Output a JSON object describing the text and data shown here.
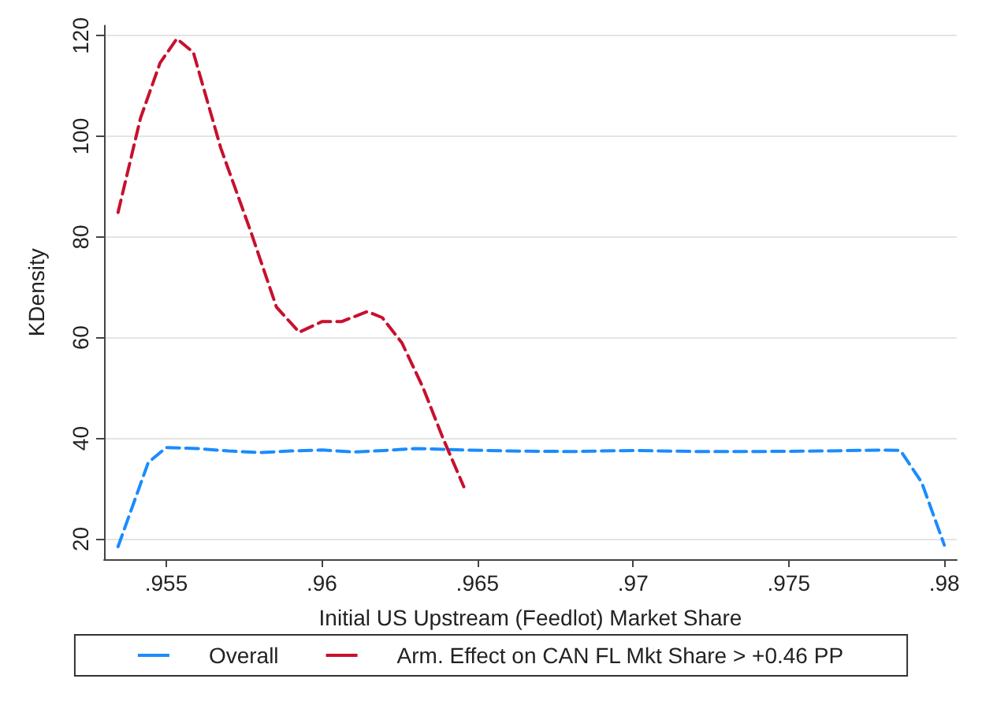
{
  "chart_data": {
    "type": "line",
    "xlabel": "Initial US Upstream (Feedlot) Market Share",
    "ylabel": "KDensity",
    "xlim": [
      0.953,
      0.9804
    ],
    "xticks": [
      {
        "value": 0.955,
        "label": ".955"
      },
      {
        "value": 0.96,
        "label": ".96"
      },
      {
        "value": 0.965,
        "label": ".965"
      },
      {
        "value": 0.97,
        "label": ".97"
      },
      {
        "value": 0.975,
        "label": ".975"
      },
      {
        "value": 0.98,
        "label": ".98"
      }
    ],
    "ylim": [
      16,
      122
    ],
    "yticks": [
      20,
      40,
      60,
      80,
      100,
      120
    ],
    "grid": "y",
    "legend": "bottom",
    "line_style": "dashed",
    "marker": "none",
    "series": [
      {
        "name": "Overall",
        "color": "#1a8cff",
        "x": [
          0.95345,
          0.95442,
          0.955,
          0.956,
          0.957,
          0.958,
          0.959,
          0.96,
          0.961,
          0.962,
          0.963,
          0.964,
          0.966,
          0.968,
          0.97,
          0.972,
          0.974,
          0.976,
          0.978,
          0.97859,
          0.97927,
          0.98
        ],
        "values": [
          18.5,
          35.2,
          38.2,
          38,
          37.5,
          37.2,
          37.5,
          37.7,
          37.3,
          37.6,
          38,
          37.8,
          37.5,
          37.4,
          37.6,
          37.4,
          37.4,
          37.5,
          37.7,
          37.6,
          31.3,
          18.8
        ]
      },
      {
        "name": "Arm. Effect on CAN FL Mkt Share > +0.46 PP",
        "color": "#c8102e",
        "x": [
          0.95345,
          0.95417,
          0.9548,
          0.95534,
          0.95587,
          0.95675,
          0.95772,
          0.95854,
          0.95927,
          0.96,
          0.96063,
          0.96146,
          0.96194,
          0.96257,
          0.96325,
          0.96388,
          0.96456
        ],
        "values": [
          84.9,
          103.6,
          114.6,
          119.4,
          116.7,
          97.7,
          81,
          66.1,
          61.1,
          63.2,
          63.2,
          65.2,
          64,
          59,
          50.1,
          40.2,
          30.4
        ]
      }
    ]
  }
}
